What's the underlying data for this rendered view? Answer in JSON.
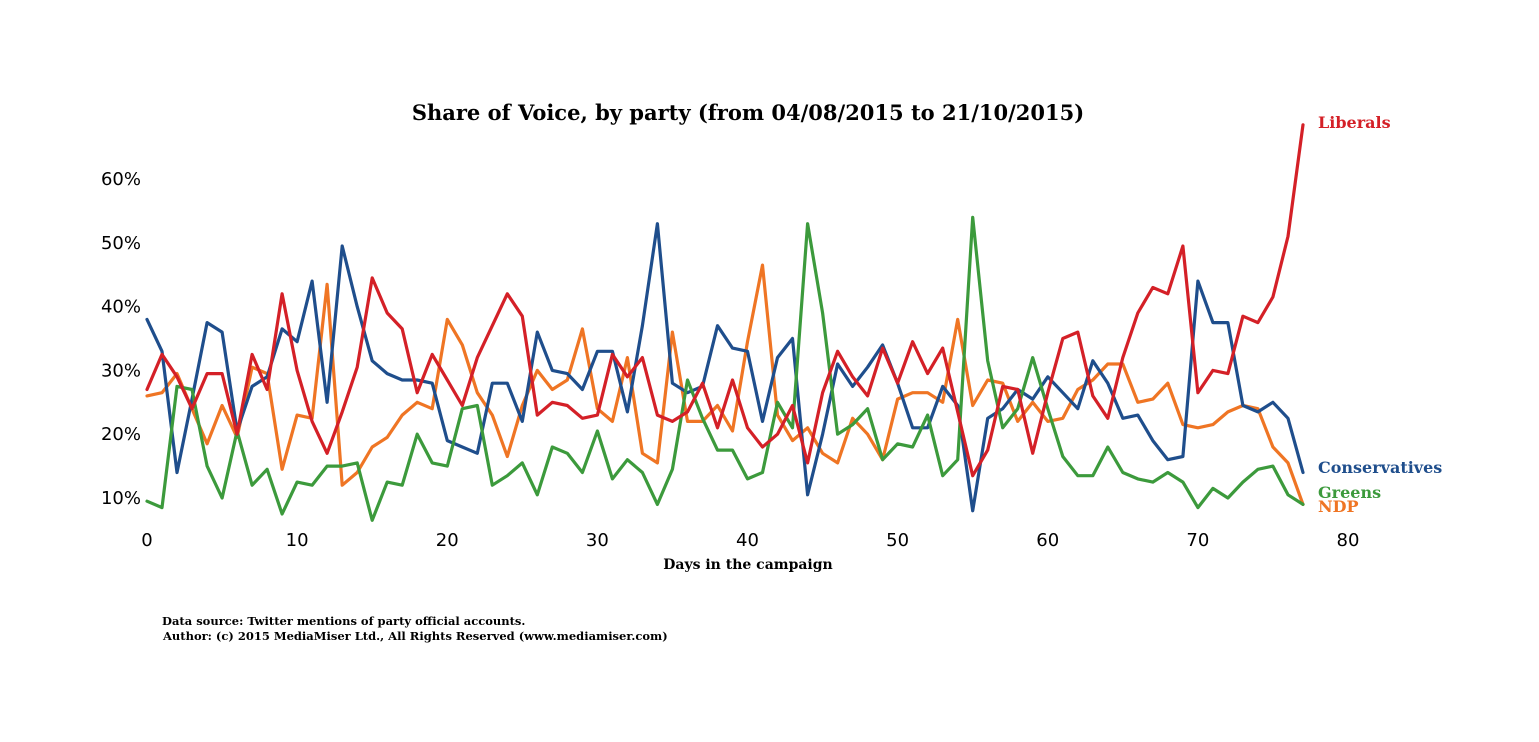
{
  "chart_data": {
    "type": "line",
    "title": "Share of Voice, by party (from 04/08/2015 to 21/10/2015)",
    "xlabel": "Days in the campaign",
    "ylabel": "",
    "xlim": [
      0,
      80
    ],
    "ylim": [
      5,
      65
    ],
    "x_ticks": [
      0,
      10,
      20,
      30,
      40,
      50,
      60,
      70,
      80
    ],
    "y_ticks": [
      10,
      20,
      30,
      40,
      50,
      60
    ],
    "y_tick_format": "percent",
    "grid": false,
    "legend": "inline labels at line ends (right)",
    "x": [
      0,
      1,
      2,
      3,
      4,
      5,
      6,
      7,
      8,
      9,
      10,
      11,
      12,
      13,
      14,
      15,
      16,
      17,
      18,
      19,
      20,
      21,
      22,
      23,
      24,
      25,
      26,
      27,
      28,
      29,
      30,
      31,
      32,
      33,
      34,
      35,
      36,
      37,
      38,
      39,
      40,
      41,
      42,
      43,
      44,
      45,
      46,
      47,
      48,
      49,
      50,
      51,
      52,
      53,
      54,
      55,
      56,
      57,
      58,
      59,
      60,
      61,
      62,
      63,
      64,
      65,
      66,
      67,
      68,
      69,
      70,
      71,
      72,
      73,
      74,
      75,
      76,
      77
    ],
    "series": [
      {
        "name": "Conservatives",
        "color": "#1f4e8c",
        "values": [
          38,
          33,
          14,
          25.5,
          37.5,
          36,
          20.5,
          27.5,
          29,
          36.5,
          34.5,
          44,
          25,
          49.5,
          40,
          31.5,
          29.5,
          28.5,
          28.5,
          28,
          19,
          18,
          17,
          28,
          28,
          22,
          36,
          30,
          29.5,
          27,
          33,
          33,
          23.5,
          37,
          53,
          28,
          26.5,
          27.5,
          37,
          33.5,
          33,
          22,
          32,
          35,
          10.5,
          20,
          31,
          27.5,
          30.5,
          34,
          28,
          21,
          21,
          27.5,
          24.5,
          8,
          22.5,
          24,
          27,
          25.5,
          29,
          26.5,
          24,
          31.5,
          28,
          22.5,
          23,
          19,
          16,
          16.5,
          44,
          37.5,
          37.5,
          24.5,
          23.5,
          25,
          22.5,
          14
        ]
      },
      {
        "name": "Liberals",
        "color": "#d42027",
        "values": [
          27,
          32.5,
          29,
          24,
          29.5,
          29.5,
          20,
          32.5,
          27,
          42,
          30,
          22,
          17,
          23.5,
          30.5,
          44.5,
          39,
          36.5,
          26.5,
          32.5,
          28.5,
          24.5,
          32,
          37,
          42,
          38.5,
          23,
          25,
          24.5,
          22.5,
          23,
          32.5,
          29,
          32,
          23,
          22,
          23.5,
          28,
          21,
          28.5,
          21,
          18,
          20,
          24.5,
          15.5,
          26.5,
          33,
          29,
          26,
          33.5,
          28,
          34.5,
          29.5,
          33.5,
          23.5,
          13.5,
          17.5,
          27.5,
          27,
          17,
          26.5,
          35,
          36,
          26,
          22.5,
          32,
          39,
          43,
          42,
          49.5,
          26.5,
          30,
          29.5,
          38.5,
          37.5,
          41.5,
          51,
          68.5
        ]
      },
      {
        "name": "Greens",
        "color": "#3c9a3c",
        "values": [
          9.5,
          8.5,
          27.5,
          27,
          15,
          10,
          20.5,
          12,
          14.5,
          7.5,
          12.5,
          12,
          15,
          15,
          15.5,
          6.5,
          12.5,
          12,
          20,
          15.5,
          15,
          24,
          24.5,
          12,
          13.5,
          15.5,
          10.5,
          18,
          17,
          14,
          20.5,
          13,
          16,
          14,
          9,
          14.5,
          28.5,
          22.5,
          17.5,
          17.5,
          13,
          14,
          25,
          21,
          53,
          39,
          20,
          21.5,
          24,
          16,
          18.5,
          18,
          23,
          13.5,
          16,
          54,
          31.5,
          21,
          24,
          32,
          24,
          16.5,
          13.5,
          13.5,
          18,
          14,
          13,
          12.5,
          14,
          12.5,
          8.5,
          11.5,
          10,
          12.5,
          14.5,
          15,
          10.5,
          9
        ]
      },
      {
        "name": "NDP",
        "color": "#ef7524",
        "values": [
          26,
          26.5,
          29.5,
          24,
          18.5,
          24.5,
          19.5,
          30.5,
          29.5,
          14.5,
          23,
          22.5,
          43.5,
          12,
          14,
          18,
          19.5,
          23,
          25,
          24,
          38,
          34,
          26.5,
          23,
          16.5,
          24.5,
          30,
          27,
          28.5,
          36.5,
          24,
          22,
          32,
          17,
          15.5,
          36,
          22,
          22,
          24.5,
          20.5,
          34.5,
          46.5,
          23,
          19,
          21,
          17,
          15.5,
          22.5,
          20,
          16,
          25.5,
          26.5,
          26.5,
          25,
          38,
          24.5,
          28.5,
          28,
          22,
          25,
          22,
          22.5,
          27,
          28.5,
          31,
          31,
          25,
          25.5,
          28,
          21.5,
          21,
          21.5,
          23.5,
          24.5,
          24,
          18,
          15.5,
          9
        ]
      }
    ],
    "annotations": [
      "Data source: Twitter mentions of party official accounts.",
      "Author: (c) 2015 MediaMiser Ltd., All Rights Reserved (www.mediamiser.com)"
    ]
  }
}
